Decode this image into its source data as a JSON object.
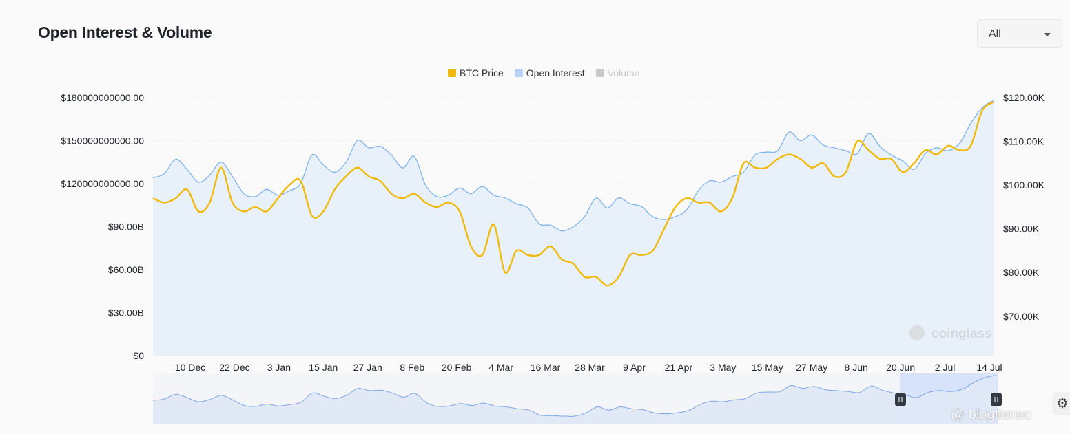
{
  "header": {
    "title": "Open Interest & Volume",
    "range_label": "All"
  },
  "legend": [
    {
      "label": "BTC Price",
      "color": "#f0b90b",
      "enabled": true
    },
    {
      "label": "Open Interest",
      "color": "#b9d4f5",
      "enabled": true
    },
    {
      "label": "Volume",
      "color": "#c9c9c9",
      "enabled": false
    }
  ],
  "watermark": {
    "brand": "coinglass",
    "overlay": "@ blogtienso"
  },
  "chart_data": {
    "type": "line",
    "title": "Open Interest & Volume",
    "x_ticks": [
      "10 Dec",
      "22 Dec",
      "3 Jan",
      "15 Jan",
      "27 Jan",
      "8 Feb",
      "20 Feb",
      "4 Mar",
      "16 Mar",
      "28 Mar",
      "9 Apr",
      "21 Apr",
      "3 May",
      "15 May",
      "27 May",
      "8 Jun",
      "20 Jun",
      "2 Jul",
      "14 Jul"
    ],
    "y_left_ticks": [
      "$0",
      "$30.00B",
      "$60.00B",
      "$90.00B",
      "$120000000000.00",
      "$150000000000.00",
      "$180000000000.00"
    ],
    "y_left_range": [
      0,
      180
    ],
    "y_left_unit": "billion USD",
    "y_right_ticks": [
      "$70.00K",
      "$80.00K",
      "$90.00K",
      "$100.00K",
      "$110.00K",
      "$120.00K"
    ],
    "y_right_range": [
      61,
      120
    ],
    "y_right_unit": "thousand USD",
    "x_start": "29 Nov",
    "x_end": "15 Jul",
    "series": [
      {
        "name": "Open Interest",
        "axis": "left",
        "values": [
          124,
          127,
          137,
          130,
          121,
          126,
          135,
          125,
          113,
          111,
          116,
          112,
          115,
          120,
          140,
          133,
          128,
          135,
          150,
          145,
          146,
          140,
          131,
          139,
          119,
          111,
          112,
          117,
          113,
          118,
          112,
          110,
          106,
          103,
          92,
          91,
          87,
          90,
          97,
          110,
          103,
          110,
          106,
          104,
          97,
          95,
          97,
          102,
          115,
          122,
          121,
          125,
          128,
          140,
          142,
          143,
          156,
          150,
          154,
          147,
          145,
          143,
          141,
          155,
          146,
          140,
          136,
          130,
          141,
          145,
          143,
          148,
          162,
          173,
          178
        ]
      },
      {
        "name": "BTC Price",
        "axis": "right",
        "values": [
          97,
          96,
          97,
          99,
          94,
          96,
          104,
          96,
          94,
          95,
          94,
          97,
          100,
          101,
          93,
          94,
          99,
          102,
          104,
          102,
          101,
          98,
          97,
          98,
          96,
          95,
          96,
          94,
          86,
          84,
          91,
          80,
          85,
          84,
          84,
          86,
          83,
          82,
          79,
          79,
          77,
          79,
          84,
          84,
          85,
          90,
          95,
          97,
          96,
          96,
          94,
          97,
          105,
          104,
          104,
          106,
          107,
          106,
          104,
          105,
          102,
          103,
          110,
          108,
          106,
          106,
          103,
          105,
          108,
          107,
          109,
          108,
          109,
          117,
          119
        ]
      }
    ],
    "grid": true,
    "legend_position": "top-center"
  }
}
